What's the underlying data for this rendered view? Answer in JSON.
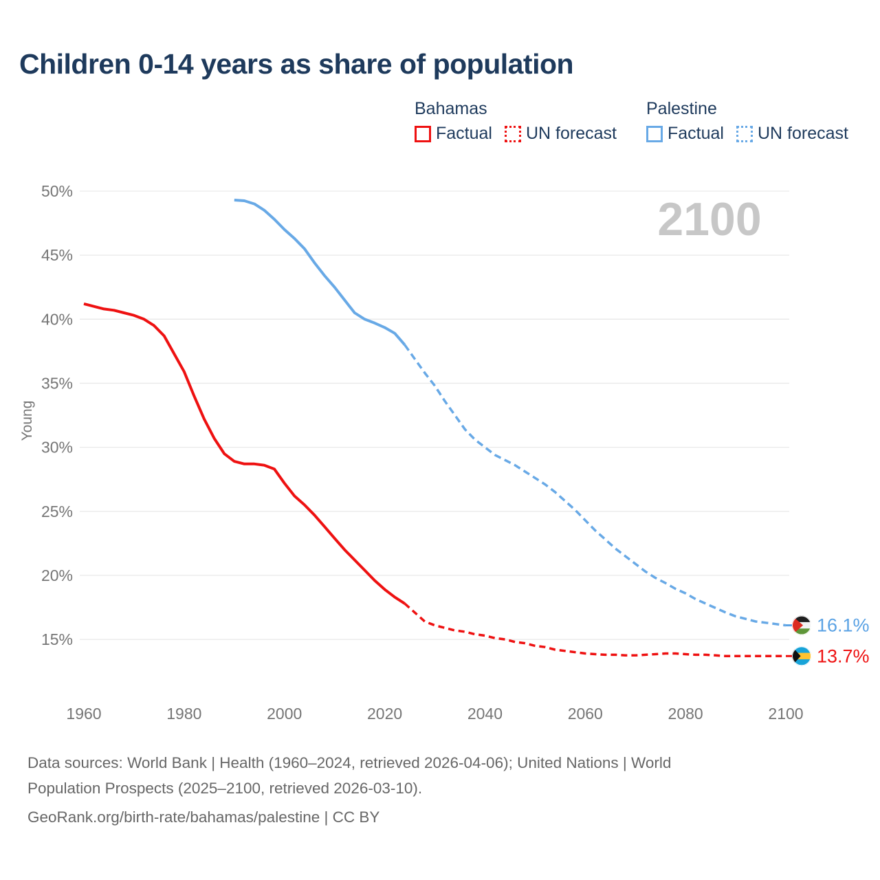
{
  "title": "Children 0-14 years as share of population",
  "legend": {
    "groups": [
      {
        "name": "Bahamas",
        "color": "#ee1111",
        "items": [
          {
            "label": "Factual",
            "style": "solid"
          },
          {
            "label": "UN forecast",
            "style": "dotted"
          }
        ]
      },
      {
        "name": "Palestine",
        "color": "#68a9e6",
        "items": [
          {
            "label": "Factual",
            "style": "solid"
          },
          {
            "label": "UN forecast",
            "style": "dotted"
          }
        ]
      }
    ]
  },
  "chart": {
    "watermark": "2100",
    "watermark_color": "#c7c7c7",
    "gridline_color": "#e9e9e9",
    "axis_text_color": "#757575"
  },
  "y_axis": {
    "title": "Young",
    "tick_values": [
      50,
      45,
      40,
      35,
      30,
      25,
      20,
      15
    ],
    "tick_labels": [
      "50%",
      "45%",
      "40%",
      "35%",
      "30%",
      "25%",
      "20%",
      "15%"
    ]
  },
  "x_axis": {
    "tick_values": [
      1960,
      1980,
      2000,
      2020,
      2040,
      2060,
      2080,
      2100
    ],
    "tick_labels": [
      "1960",
      "1980",
      "2000",
      "2020",
      "2040",
      "2060",
      "2080",
      "2100"
    ]
  },
  "end_labels": [
    {
      "series": "Palestine",
      "label": "16.1%",
      "value": 16.1,
      "color": "#5aa2e4",
      "flag": {
        "name": "palestine-flag",
        "stripes": [
          "#1f1f1f",
          "#f3f3f3",
          "#5f9639"
        ],
        "triangle": "#dc2b1f",
        "triangle_extent": 1.15
      }
    },
    {
      "series": "Bahamas",
      "label": "13.7%",
      "value": 13.7,
      "color": "#ee1111",
      "flag": {
        "name": "bahamas-flag",
        "stripes": [
          "#18a3d8",
          "#ffc32e",
          "#18a3d8"
        ],
        "triangle": "#101010",
        "triangle_extent": 0.9
      }
    }
  ],
  "footer": {
    "lines": [
      "Data sources: World Bank | Health (1960–2024, retrieved 2026-04-06); United Nations | World",
      "Population Prospects (2025–2100, retrieved 2026-03-10).",
      "GeoRank.org/birth-rate/bahamas/palestine | CC BY"
    ]
  },
  "chart_data": {
    "type": "line",
    "title": "Children 0-14 years as share of population",
    "ylabel": "Young",
    "unit": "%",
    "x_range": [
      1960,
      2100
    ],
    "y_range": [
      15,
      50
    ],
    "grid": "horizontal",
    "legend_position": "top-right",
    "series": [
      {
        "id": "bahamas-factual",
        "name": "Bahamas — Factual",
        "color": "#ee1111",
        "dash": null,
        "width": 4,
        "points": [
          [
            1960,
            41.2
          ],
          [
            1962,
            41.0
          ],
          [
            1964,
            40.8
          ],
          [
            1966,
            40.7
          ],
          [
            1968,
            40.5
          ],
          [
            1970,
            40.3
          ],
          [
            1972,
            40.0
          ],
          [
            1974,
            39.5
          ],
          [
            1976,
            38.7
          ],
          [
            1978,
            37.3
          ],
          [
            1980,
            35.9
          ],
          [
            1982,
            34.0
          ],
          [
            1984,
            32.2
          ],
          [
            1986,
            30.7
          ],
          [
            1988,
            29.5
          ],
          [
            1990,
            28.9
          ],
          [
            1992,
            28.7
          ],
          [
            1994,
            28.7
          ],
          [
            1996,
            28.6
          ],
          [
            1998,
            28.3
          ],
          [
            2000,
            27.2
          ],
          [
            2002,
            26.2
          ],
          [
            2004,
            25.5
          ],
          [
            2006,
            24.7
          ],
          [
            2008,
            23.8
          ],
          [
            2010,
            22.9
          ],
          [
            2012,
            22.0
          ],
          [
            2014,
            21.2
          ],
          [
            2016,
            20.4
          ],
          [
            2018,
            19.6
          ],
          [
            2020,
            18.9
          ],
          [
            2022,
            18.3
          ],
          [
            2024,
            17.8
          ]
        ]
      },
      {
        "id": "bahamas-forecast",
        "name": "Bahamas — UN forecast",
        "color": "#ee1111",
        "dash": "9 6",
        "width": 3.5,
        "points": [
          [
            2024,
            17.8
          ],
          [
            2026,
            17.1
          ],
          [
            2028,
            16.4
          ],
          [
            2030,
            16.1
          ],
          [
            2032,
            15.9
          ],
          [
            2034,
            15.7
          ],
          [
            2036,
            15.6
          ],
          [
            2038,
            15.4
          ],
          [
            2040,
            15.3
          ],
          [
            2042,
            15.1
          ],
          [
            2044,
            15.0
          ],
          [
            2046,
            14.8
          ],
          [
            2048,
            14.7
          ],
          [
            2050,
            14.5
          ],
          [
            2052,
            14.4
          ],
          [
            2054,
            14.2
          ],
          [
            2056,
            14.1
          ],
          [
            2058,
            14.0
          ],
          [
            2060,
            13.9
          ],
          [
            2062,
            13.85
          ],
          [
            2064,
            13.8
          ],
          [
            2066,
            13.8
          ],
          [
            2068,
            13.75
          ],
          [
            2070,
            13.75
          ],
          [
            2072,
            13.8
          ],
          [
            2074,
            13.85
          ],
          [
            2076,
            13.9
          ],
          [
            2078,
            13.9
          ],
          [
            2080,
            13.85
          ],
          [
            2082,
            13.8
          ],
          [
            2084,
            13.8
          ],
          [
            2086,
            13.75
          ],
          [
            2088,
            13.7
          ],
          [
            2090,
            13.7
          ],
          [
            2092,
            13.7
          ],
          [
            2094,
            13.7
          ],
          [
            2096,
            13.7
          ],
          [
            2098,
            13.7
          ],
          [
            2100,
            13.7
          ]
        ]
      },
      {
        "id": "palestine-factual",
        "name": "Palestine — Factual",
        "color": "#68a9e6",
        "dash": null,
        "width": 4,
        "points": [
          [
            1990,
            49.3
          ],
          [
            1992,
            49.25
          ],
          [
            1994,
            49.0
          ],
          [
            1996,
            48.5
          ],
          [
            1998,
            47.8
          ],
          [
            2000,
            47.0
          ],
          [
            2002,
            46.3
          ],
          [
            2004,
            45.5
          ],
          [
            2006,
            44.4
          ],
          [
            2008,
            43.4
          ],
          [
            2010,
            42.5
          ],
          [
            2012,
            41.5
          ],
          [
            2014,
            40.5
          ],
          [
            2016,
            40.0
          ],
          [
            2018,
            39.7
          ],
          [
            2020,
            39.35
          ],
          [
            2022,
            38.9
          ],
          [
            2024,
            38.0
          ]
        ]
      },
      {
        "id": "palestine-forecast",
        "name": "Palestine — UN forecast",
        "color": "#68a9e6",
        "dash": "10 6",
        "width": 3.5,
        "points": [
          [
            2024,
            38.0
          ],
          [
            2026,
            36.9
          ],
          [
            2028,
            35.8
          ],
          [
            2030,
            34.8
          ],
          [
            2032,
            33.6
          ],
          [
            2034,
            32.5
          ],
          [
            2036,
            31.4
          ],
          [
            2038,
            30.6
          ],
          [
            2040,
            30.0
          ],
          [
            2042,
            29.4
          ],
          [
            2044,
            29.0
          ],
          [
            2046,
            28.6
          ],
          [
            2048,
            28.1
          ],
          [
            2050,
            27.6
          ],
          [
            2052,
            27.1
          ],
          [
            2054,
            26.5
          ],
          [
            2056,
            25.8
          ],
          [
            2058,
            25.1
          ],
          [
            2060,
            24.3
          ],
          [
            2062,
            23.5
          ],
          [
            2064,
            22.8
          ],
          [
            2066,
            22.1
          ],
          [
            2068,
            21.5
          ],
          [
            2070,
            20.9
          ],
          [
            2072,
            20.3
          ],
          [
            2074,
            19.8
          ],
          [
            2076,
            19.4
          ],
          [
            2078,
            18.95
          ],
          [
            2080,
            18.6
          ],
          [
            2082,
            18.15
          ],
          [
            2084,
            17.8
          ],
          [
            2086,
            17.45
          ],
          [
            2088,
            17.1
          ],
          [
            2090,
            16.8
          ],
          [
            2092,
            16.6
          ],
          [
            2094,
            16.4
          ],
          [
            2096,
            16.3
          ],
          [
            2098,
            16.2
          ],
          [
            2100,
            16.1
          ]
        ]
      }
    ]
  }
}
